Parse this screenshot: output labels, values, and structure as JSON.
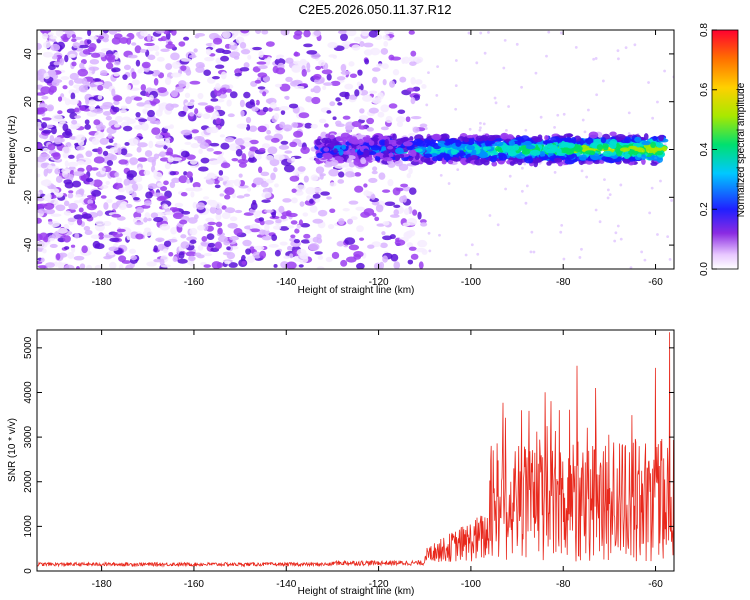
{
  "title": "C2E5.2026.050.11.37.R12",
  "colors": {
    "series_line": "#e8281c",
    "axis": "#000000",
    "signal_band": "#2bd4c0"
  },
  "chart_data": [
    {
      "type": "heatmap",
      "name": "spectrogram",
      "xlabel": "Height of straight line (km)",
      "ylabel": "Frequency (Hz)",
      "xlim": [
        -194,
        -56
      ],
      "ylim": [
        -50,
        50
      ],
      "xticks": [
        -180,
        -160,
        -140,
        -120,
        -100,
        -80,
        -60
      ],
      "yticks": [
        -40,
        -20,
        0,
        20,
        40
      ],
      "colorbar": {
        "label": "Normalized spectral amplitude",
        "range": [
          0,
          0.8
        ],
        "ticks": [
          "0.0",
          "0.2",
          "0.4",
          "0.6",
          "0.8"
        ]
      },
      "signal_band": {
        "x_start": -133,
        "x_end": -58,
        "center_freq": 0,
        "half_width": 6
      },
      "noise_region": {
        "x_start": -194,
        "x_end": -110
      }
    },
    {
      "type": "line",
      "name": "snr",
      "xlabel": "Height of straight line (km)",
      "ylabel": "SNR (10 * v/v)",
      "xlim": [
        -194,
        -56
      ],
      "ylim": [
        0,
        5400
      ],
      "xticks": [
        -180,
        -160,
        -140,
        -120,
        -100,
        -80,
        -60
      ],
      "yticks": [
        0,
        1000,
        2000,
        3000,
        4000,
        5000
      ],
      "segments": [
        {
          "x": [
            -194,
            -130
          ],
          "baseline": 150,
          "jitter": 80
        },
        {
          "x": [
            -130,
            -110
          ],
          "baseline": 180,
          "jitter": 110
        },
        {
          "x": [
            -110,
            -96
          ],
          "baseline": 500,
          "jitter": 500
        },
        {
          "x": [
            -96,
            -56
          ],
          "baseline": 1800,
          "jitter": 2400
        }
      ],
      "peaks": [
        {
          "x": -89,
          "y": 3600
        },
        {
          "x": -77,
          "y": 4600
        },
        {
          "x": -73,
          "y": 4100
        },
        {
          "x": -60,
          "y": 4550
        },
        {
          "x": -57,
          "y": 5350
        }
      ]
    }
  ]
}
